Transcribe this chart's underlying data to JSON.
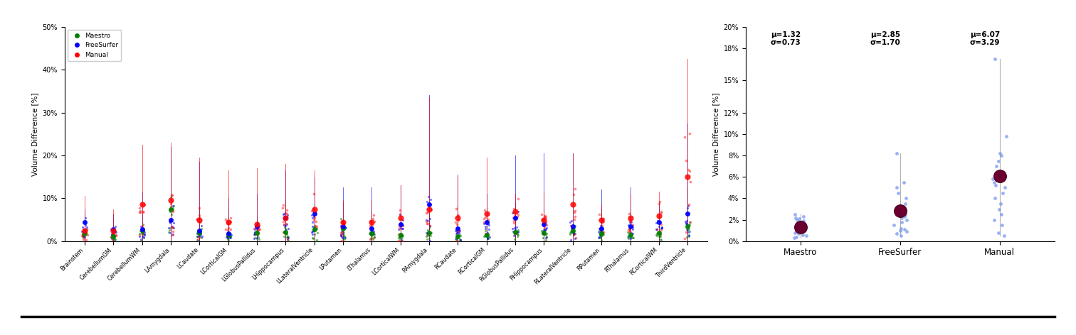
{
  "categories": [
    "Brainstem",
    "CerebellumGM",
    "CerebellumWM",
    "LAmygdala",
    "LCaudate",
    "LCorticalGM",
    "LGlobusPallidus",
    "LHippocampus",
    "LLateralVentricle",
    "LPutamen",
    "LThalamus",
    "LCorticalWM",
    "RAmygdala",
    "RCaudate",
    "RCorticalGM",
    "RGlobusPallidus",
    "RHippocampus",
    "RLateralVentricle",
    "RPutamen",
    "RThalamus",
    "RCorticalWM",
    "ThirdVentricle"
  ],
  "maestro_mean": [
    1.8,
    1.2,
    2.5,
    7.5,
    2.0,
    1.5,
    2.0,
    2.2,
    2.8,
    3.0,
    1.8,
    1.5,
    2.0,
    1.2,
    1.5,
    2.2,
    2.0,
    2.5,
    1.8,
    1.5,
    2.0,
    3.5
  ],
  "freesurfer_mean": [
    4.5,
    2.8,
    2.8,
    5.0,
    2.5,
    1.8,
    3.5,
    5.5,
    6.5,
    3.5,
    3.0,
    4.0,
    8.5,
    3.0,
    4.5,
    5.5,
    4.0,
    3.5,
    3.0,
    3.5,
    4.5,
    6.5
  ],
  "manual_mean": [
    2.5,
    2.5,
    8.5,
    9.5,
    5.0,
    4.5,
    4.0,
    5.5,
    7.5,
    4.5,
    4.5,
    5.5,
    7.5,
    5.5,
    6.5,
    7.0,
    5.0,
    8.5,
    5.0,
    5.5,
    6.0,
    15.0
  ],
  "maestro_max": [
    6.5,
    5.5,
    6.5,
    19.0,
    8.0,
    7.5,
    6.0,
    9.5,
    8.5,
    9.0,
    7.5,
    7.0,
    8.5,
    8.5,
    8.0,
    9.0,
    7.5,
    9.0,
    7.5,
    8.0,
    8.5,
    12.5
  ],
  "freesurfer_max": [
    7.5,
    6.5,
    11.5,
    22.0,
    18.5,
    10.0,
    11.0,
    16.5,
    15.0,
    12.5,
    12.5,
    13.0,
    34.0,
    15.5,
    11.0,
    20.0,
    20.5,
    20.5,
    12.0,
    12.5,
    9.0,
    27.5
  ],
  "manual_max": [
    10.5,
    7.5,
    22.5,
    23.0,
    19.5,
    16.5,
    17.0,
    18.0,
    16.5,
    9.5,
    9.5,
    13.0,
    33.5,
    15.0,
    19.5,
    11.0,
    11.5,
    20.5,
    8.5,
    11.0,
    11.5,
    42.5
  ],
  "summary_groups": [
    "Maestro",
    "FreeSurfer",
    "Manual"
  ],
  "summary_mu": [
    1.32,
    2.85,
    6.07
  ],
  "summary_sigma": [
    0.73,
    1.7,
    3.29
  ],
  "summary_sigma_str": [
    "0.73",
    "1.70",
    "3.29"
  ],
  "summary_scatter_maestro": [
    0.3,
    0.5,
    0.7,
    0.8,
    1.0,
    1.1,
    1.3,
    1.4,
    1.5,
    1.6,
    1.7,
    1.8,
    1.9,
    2.0,
    2.1,
    2.2,
    0.4,
    0.6,
    0.9,
    1.2,
    2.3,
    2.5
  ],
  "summary_scatter_freesurfer": [
    0.5,
    0.7,
    0.9,
    1.0,
    1.1,
    1.2,
    1.5,
    1.8,
    2.0,
    2.2,
    2.3,
    2.5,
    2.6,
    2.8,
    3.0,
    3.2,
    3.5,
    4.0,
    4.5,
    5.0,
    5.5,
    8.2
  ],
  "summary_scatter_manual": [
    0.5,
    0.8,
    1.5,
    2.0,
    2.5,
    3.0,
    3.5,
    4.0,
    4.5,
    5.0,
    5.2,
    5.5,
    5.8,
    6.0,
    6.2,
    6.5,
    7.0,
    7.5,
    8.0,
    8.2,
    9.8,
    17.0
  ],
  "color_maestro": "#008000",
  "color_freesurfer": "#0000FF",
  "color_manual": "#FF0000",
  "color_summary_dot": "#6B0030",
  "color_summary_scatter": "#7799EE",
  "ylim_left": [
    0,
    50
  ],
  "ylim_right": [
    0,
    20
  ],
  "ylabel_left": "Volume Difference [%]",
  "ylabel_right": "Volume Difference [%]",
  "yticks_right": [
    0,
    2,
    4,
    6,
    8,
    10,
    12,
    15,
    18,
    20
  ],
  "ytick_labels_right": [
    "0%",
    "2%",
    "4%",
    "6%",
    "8%",
    "10%",
    "12%",
    "15%",
    "18%",
    "20%"
  ]
}
